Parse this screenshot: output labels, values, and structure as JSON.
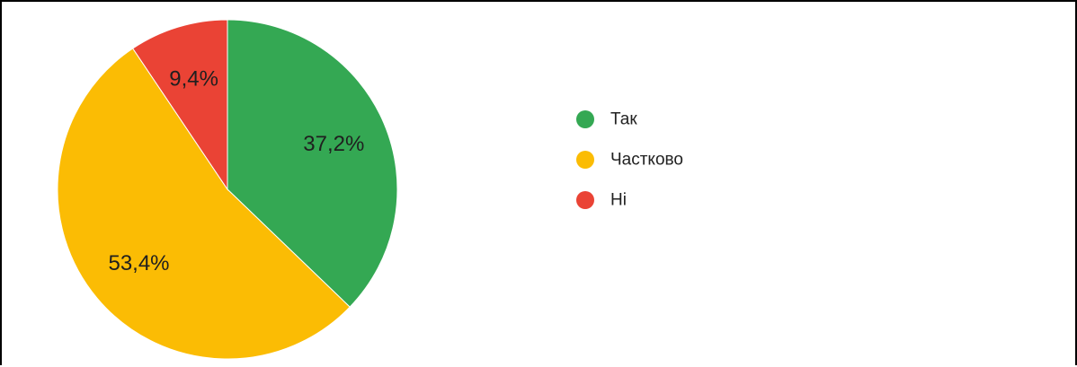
{
  "chart_data": {
    "type": "pie",
    "title": "",
    "legend_position": "right",
    "start_angle_deg": 0,
    "direction": "clockwise",
    "slices": [
      {
        "label": "Так",
        "value": 37.2,
        "display": "37,2%",
        "color": "#34a853"
      },
      {
        "label": "Частково",
        "value": 53.4,
        "display": "53,4%",
        "color": "#fbbc04"
      },
      {
        "label": "Ні",
        "value": 9.4,
        "display": "9,4%",
        "color": "#ea4335"
      }
    ]
  }
}
